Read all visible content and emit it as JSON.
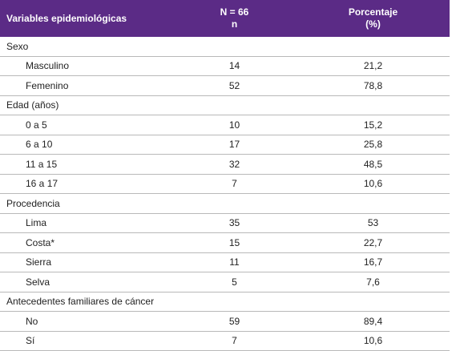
{
  "header": {
    "variable": "Variables epidemiológicas",
    "n": [
      "N = 66",
      "n"
    ],
    "percent": [
      "Porcentaje",
      "(%)"
    ]
  },
  "sections": [
    {
      "label": "Sexo",
      "rows": [
        [
          "Masculino",
          "14",
          "21,2"
        ],
        [
          "Femenino",
          "52",
          "78,8"
        ]
      ]
    },
    {
      "label": "Edad (años)",
      "rows": [
        [
          "0 a 5",
          "10",
          "15,2"
        ],
        [
          "6 a 10",
          "17",
          "25,8"
        ],
        [
          "11 a 15",
          "32",
          "48,5"
        ],
        [
          "16 a 17",
          "7",
          "10,6"
        ]
      ]
    },
    {
      "label": "Procedencia",
      "rows": [
        [
          "Lima",
          "35",
          "53"
        ],
        [
          "Costa*",
          "15",
          "22,7"
        ],
        [
          "Sierra",
          "11",
          "16,7"
        ],
        [
          "Selva",
          "5",
          "7,6"
        ]
      ]
    },
    {
      "label": "Antecedentes familiares de cáncer",
      "rows": [
        [
          "No",
          "59",
          "89,4"
        ],
        [
          "Sí",
          "7",
          "10,6"
        ]
      ]
    }
  ]
}
